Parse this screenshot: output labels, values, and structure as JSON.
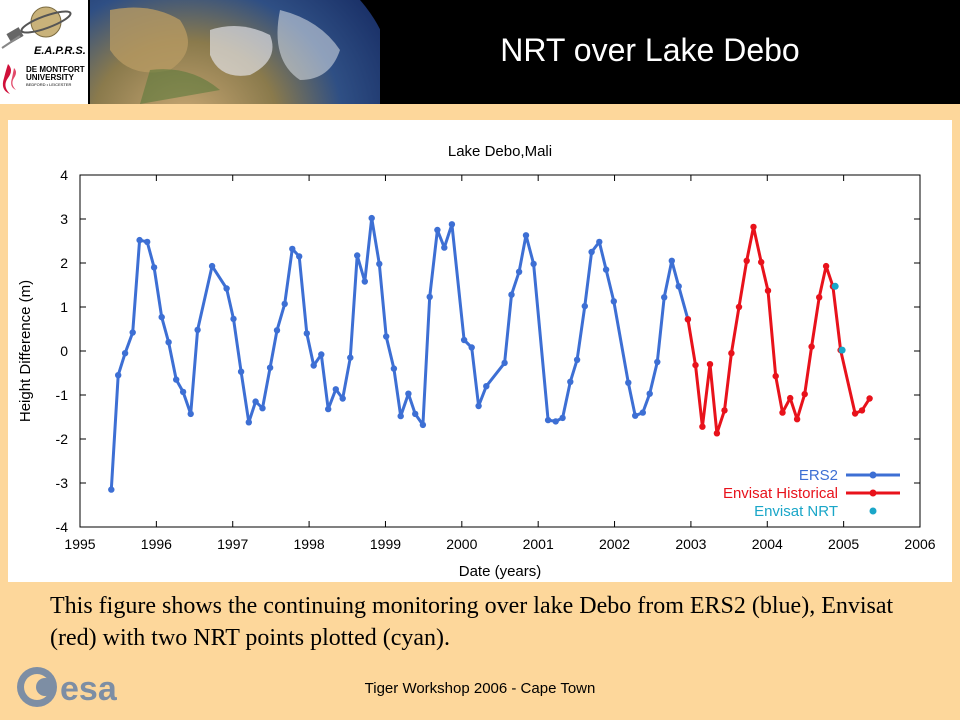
{
  "header": {
    "title": "NRT over Lake Debo",
    "logo_text": "E.A.P.R.S.",
    "university_line1": "DE MONTFORT",
    "university_line2": "UNIVERSITY",
    "university_subline": "BEDFORD • LEICESTER"
  },
  "caption": "This figure shows the continuing monitoring over lake Debo from ERS2 (blue), Envisat (red) with two NRT points plotted (cyan).",
  "footer": {
    "text": "Tiger Workshop 2006 - Cape Town",
    "esa_logo": "esa"
  },
  "colors": {
    "background": "#fdd79b",
    "ers2": "#3d6fd4",
    "envisat": "#e8121b",
    "nrt": "#1aa6c8"
  },
  "chart_data": {
    "type": "line",
    "title": "Lake Debo,Mali",
    "xlabel": "Date (years)",
    "ylabel": "Height Difference (m)",
    "xlim": [
      1995,
      2006
    ],
    "ylim": [
      -4,
      4
    ],
    "xticks": [
      "1995",
      "1996",
      "1997",
      "1998",
      "1999",
      "2000",
      "2001",
      "2002",
      "2003",
      "2004",
      "2005",
      "2006"
    ],
    "yticks": [
      "4",
      "3",
      "2",
      "1",
      "0",
      "-1",
      "-2",
      "-3",
      "-4"
    ],
    "legend_position": "bottom-right",
    "series": [
      {
        "name": "ERS2",
        "style": "line+markers",
        "points": [
          [
            1995.41,
            -3.15
          ],
          [
            1995.5,
            -0.55
          ],
          [
            1995.59,
            -0.05
          ],
          [
            1995.69,
            0.42
          ],
          [
            1995.78,
            2.52
          ],
          [
            1995.88,
            2.48
          ],
          [
            1995.97,
            1.9
          ],
          [
            1996.07,
            0.77
          ],
          [
            1996.16,
            0.2
          ],
          [
            1996.26,
            -0.65
          ],
          [
            1996.35,
            -0.93
          ],
          [
            1996.45,
            -1.43
          ],
          [
            1996.54,
            0.48
          ],
          [
            1996.73,
            1.93
          ],
          [
            1996.92,
            1.42
          ],
          [
            1997.01,
            0.73
          ],
          [
            1997.11,
            -0.47
          ],
          [
            1997.21,
            -1.62
          ],
          [
            1997.3,
            -1.15
          ],
          [
            1997.39,
            -1.3
          ],
          [
            1997.49,
            -0.38
          ],
          [
            1997.58,
            0.47
          ],
          [
            1997.68,
            1.07
          ],
          [
            1997.78,
            2.32
          ],
          [
            1997.87,
            2.15
          ],
          [
            1997.97,
            0.4
          ],
          [
            1998.06,
            -0.33
          ],
          [
            1998.16,
            -0.08
          ],
          [
            1998.25,
            -1.32
          ],
          [
            1998.35,
            -0.87
          ],
          [
            1998.44,
            -1.08
          ],
          [
            1998.54,
            -0.15
          ],
          [
            1998.63,
            2.17
          ],
          [
            1998.73,
            1.58
          ],
          [
            1998.82,
            3.02
          ],
          [
            1998.92,
            1.98
          ],
          [
            1999.01,
            0.33
          ],
          [
            1999.11,
            -0.4
          ],
          [
            1999.2,
            -1.48
          ],
          [
            1999.3,
            -0.97
          ],
          [
            1999.39,
            -1.43
          ],
          [
            1999.49,
            -1.68
          ],
          [
            1999.58,
            1.23
          ],
          [
            1999.68,
            2.75
          ],
          [
            1999.77,
            2.35
          ],
          [
            1999.87,
            2.88
          ],
          [
            2000.03,
            0.25
          ],
          [
            2000.13,
            0.08
          ],
          [
            2000.22,
            -1.25
          ],
          [
            2000.32,
            -0.8
          ],
          [
            2000.56,
            -0.27
          ],
          [
            2000.65,
            1.28
          ],
          [
            2000.75,
            1.8
          ],
          [
            2000.84,
            2.63
          ],
          [
            2000.94,
            1.98
          ],
          [
            2001.13,
            -1.57
          ],
          [
            2001.23,
            -1.6
          ],
          [
            2001.32,
            -1.52
          ],
          [
            2001.42,
            -0.7
          ],
          [
            2001.51,
            -0.2
          ],
          [
            2001.61,
            1.02
          ],
          [
            2001.7,
            2.25
          ],
          [
            2001.8,
            2.48
          ],
          [
            2001.89,
            1.85
          ],
          [
            2001.99,
            1.13
          ],
          [
            2002.18,
            -0.72
          ],
          [
            2002.27,
            -1.47
          ],
          [
            2002.37,
            -1.4
          ],
          [
            2002.46,
            -0.97
          ],
          [
            2002.56,
            -0.25
          ],
          [
            2002.65,
            1.22
          ],
          [
            2002.75,
            2.05
          ],
          [
            2002.84,
            1.47
          ],
          [
            2002.96,
            0.72
          ]
        ]
      },
      {
        "name": "Envisat Historical",
        "style": "line+markers",
        "points": [
          [
            2002.96,
            0.72
          ],
          [
            2003.06,
            -0.32
          ],
          [
            2003.15,
            -1.72
          ],
          [
            2003.25,
            -0.3
          ],
          [
            2003.34,
            -1.87
          ],
          [
            2003.44,
            -1.35
          ],
          [
            2003.53,
            -0.05
          ],
          [
            2003.63,
            1.0
          ],
          [
            2003.73,
            2.05
          ],
          [
            2003.82,
            2.82
          ],
          [
            2003.92,
            2.02
          ],
          [
            2004.01,
            1.37
          ],
          [
            2004.11,
            -0.57
          ],
          [
            2004.2,
            -1.4
          ],
          [
            2004.3,
            -1.07
          ],
          [
            2004.39,
            -1.55
          ],
          [
            2004.49,
            -0.98
          ],
          [
            2004.58,
            0.1
          ],
          [
            2004.68,
            1.22
          ],
          [
            2004.77,
            1.93
          ],
          [
            2004.86,
            1.47
          ],
          [
            2004.96,
            0.02
          ],
          [
            2005.15,
            -1.42
          ],
          [
            2005.24,
            -1.35
          ],
          [
            2005.34,
            -1.08
          ]
        ]
      },
      {
        "name": "Envisat NRT",
        "style": "markers",
        "points": [
          [
            2004.89,
            1.47
          ],
          [
            2004.98,
            0.02
          ]
        ]
      }
    ]
  }
}
